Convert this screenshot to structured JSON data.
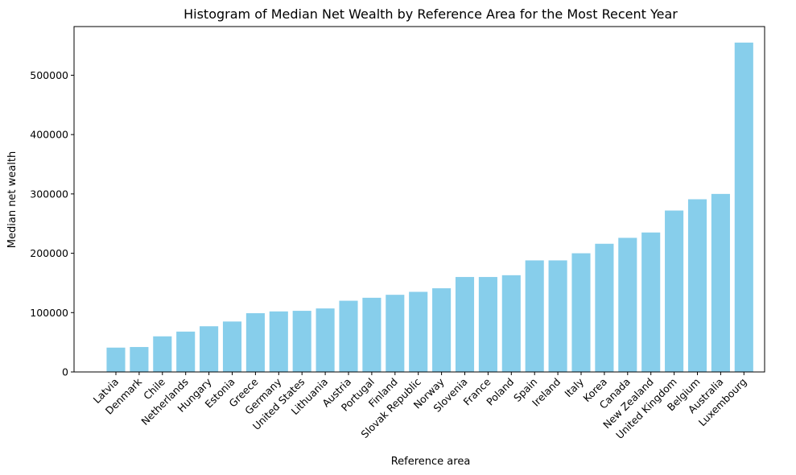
{
  "chart_data": {
    "type": "bar",
    "title": "Histogram of Median Net Wealth by Reference Area for the Most Recent Year",
    "xlabel": "Reference area",
    "ylabel": "Median net wealth",
    "categories": [
      "Latvia",
      "Denmark",
      "Chile",
      "Netherlands",
      "Hungary",
      "Estonia",
      "Greece",
      "Germany",
      "United States",
      "Lithuania",
      "Austria",
      "Portugal",
      "Finland",
      "Slovak Republic",
      "Norway",
      "Slovenia",
      "France",
      "Poland",
      "Spain",
      "Ireland",
      "Italy",
      "Korea",
      "Canada",
      "New Zealand",
      "United Kingdom",
      "Belgium",
      "Australia",
      "Luxembourg"
    ],
    "values": [
      41000,
      42000,
      60000,
      68000,
      77000,
      85000,
      99000,
      102000,
      103000,
      107000,
      120000,
      125000,
      130000,
      135000,
      141000,
      160000,
      160000,
      163000,
      188000,
      188000,
      200000,
      216000,
      226000,
      235000,
      272000,
      291000,
      300000,
      555000
    ],
    "ylim": [
      0,
      582000
    ],
    "yticks": [
      0,
      100000,
      200000,
      300000,
      400000,
      500000
    ],
    "ytick_labels": [
      "0",
      "100000",
      "200000",
      "300000",
      "400000",
      "500000"
    ],
    "bar_color": "#87CEEB",
    "grid": false,
    "legend": "none"
  }
}
